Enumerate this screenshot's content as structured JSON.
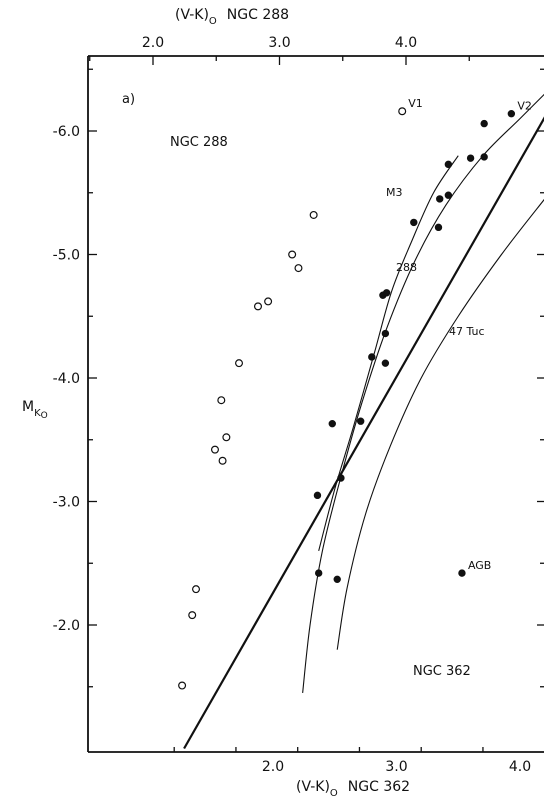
{
  "chart_data": {
    "type": "scatter",
    "panel_label": "a)",
    "top_axis": {
      "label_main": "(V-K)",
      "label_sub": "O",
      "label_tail": "NGC 288",
      "ticks": [
        2.0,
        3.0,
        4.0
      ],
      "tick_labels": [
        "2.0",
        "3.0",
        "4.0"
      ],
      "range": [
        1.4,
        4.6
      ]
    },
    "bottom_axis": {
      "label_main": "(V-K)",
      "label_sub": "O",
      "label_tail": "NGC 362",
      "ticks": [
        2.0,
        3.0,
        4.0
      ],
      "tick_labels": [
        "2.0",
        "3.0",
        "4.0"
      ],
      "range": [
        1.1,
        4.2
      ]
    },
    "y_axis": {
      "label_main": "M",
      "label_sub1": "K",
      "label_sub2": "O",
      "ticks": [
        -2.0,
        -3.0,
        -4.0,
        -5.0,
        -6.0
      ],
      "tick_labels": [
        "-2.0",
        "-3.0",
        "-4.0",
        "-5.0",
        "-6.0"
      ],
      "range": [
        -1.0,
        -6.6
      ]
    },
    "panel_labels": {
      "ngc288": "NGC 288",
      "ngc362": "NGC 362"
    },
    "series": [
      {
        "name": "NGC 288",
        "axis": "top",
        "marker": "open-circle",
        "points": [
          {
            "x": 2.23,
            "y": -1.51,
            "label": ""
          },
          {
            "x": 2.31,
            "y": -2.08,
            "label": ""
          },
          {
            "x": 2.34,
            "y": -2.29,
            "label": ""
          },
          {
            "x": 2.49,
            "y": -3.42,
            "label": ""
          },
          {
            "x": 2.55,
            "y": -3.33,
            "label": ""
          },
          {
            "x": 2.58,
            "y": -3.52,
            "label": ""
          },
          {
            "x": 2.54,
            "y": -3.82,
            "label": ""
          },
          {
            "x": 2.68,
            "y": -4.12,
            "label": ""
          },
          {
            "x": 2.83,
            "y": -4.58,
            "label": ""
          },
          {
            "x": 2.91,
            "y": -4.62,
            "label": ""
          },
          {
            "x": 3.1,
            "y": -5.0,
            "label": ""
          },
          {
            "x": 3.15,
            "y": -4.89,
            "label": ""
          },
          {
            "x": 3.27,
            "y": -5.32,
            "label": ""
          },
          {
            "x": 3.97,
            "y": -6.16,
            "label": "V1"
          }
        ]
      },
      {
        "name": "NGC 362",
        "axis": "bottom",
        "marker": "filled-circle",
        "points": [
          {
            "x": 2.37,
            "y": -2.42,
            "label": ""
          },
          {
            "x": 2.52,
            "y": -2.37,
            "label": ""
          },
          {
            "x": 2.36,
            "y": -3.05,
            "label": ""
          },
          {
            "x": 2.55,
            "y": -3.19,
            "label": ""
          },
          {
            "x": 2.48,
            "y": -3.63,
            "label": ""
          },
          {
            "x": 2.71,
            "y": -3.65,
            "label": ""
          },
          {
            "x": 2.8,
            "y": -4.17,
            "label": ""
          },
          {
            "x": 2.91,
            "y": -4.12,
            "label": ""
          },
          {
            "x": 2.91,
            "y": -4.36,
            "label": ""
          },
          {
            "x": 2.89,
            "y": -4.67,
            "label": ""
          },
          {
            "x": 2.92,
            "y": -4.69,
            "label": ""
          },
          {
            "x": 3.14,
            "y": -5.26,
            "label": ""
          },
          {
            "x": 3.34,
            "y": -5.22,
            "label": ""
          },
          {
            "x": 3.35,
            "y": -5.45,
            "label": ""
          },
          {
            "x": 3.42,
            "y": -5.48,
            "label": ""
          },
          {
            "x": 3.42,
            "y": -5.73,
            "label": ""
          },
          {
            "x": 3.6,
            "y": -5.78,
            "label": ""
          },
          {
            "x": 3.71,
            "y": -5.79,
            "label": ""
          },
          {
            "x": 3.71,
            "y": -6.06,
            "label": ""
          },
          {
            "x": 3.93,
            "y": -6.14,
            "label": "V2"
          },
          {
            "x": 3.53,
            "y": -2.42,
            "label": "AGB"
          }
        ]
      }
    ],
    "lines": [
      {
        "name": "limit",
        "axis": "bottom",
        "points": [
          [
            1.28,
            -1.0
          ],
          [
            4.48,
            -6.6
          ]
        ]
      },
      {
        "name": "M3",
        "axis": "bottom",
        "label": "M3",
        "points": [
          [
            2.37,
            -2.6
          ],
          [
            2.5,
            -3.1
          ],
          [
            2.65,
            -3.6
          ],
          [
            2.82,
            -4.2
          ],
          [
            2.96,
            -4.7
          ],
          [
            3.12,
            -5.1
          ],
          [
            3.3,
            -5.5
          ],
          [
            3.5,
            -5.8
          ]
        ]
      },
      {
        "name": "288",
        "axis": "bottom",
        "label": "288",
        "points": [
          [
            2.24,
            -1.45
          ],
          [
            2.3,
            -2.0
          ],
          [
            2.4,
            -2.6
          ],
          [
            2.55,
            -3.2
          ],
          [
            2.72,
            -3.8
          ],
          [
            2.92,
            -4.4
          ],
          [
            3.15,
            -4.95
          ],
          [
            3.4,
            -5.4
          ],
          [
            3.7,
            -5.8
          ],
          [
            4.0,
            -6.1
          ],
          [
            4.2,
            -6.3
          ]
        ]
      },
      {
        "name": "47 Tuc",
        "axis": "bottom",
        "label": "47 Tuc",
        "points": [
          [
            2.52,
            -1.8
          ],
          [
            2.6,
            -2.3
          ],
          [
            2.75,
            -2.9
          ],
          [
            2.95,
            -3.45
          ],
          [
            3.2,
            -4.0
          ],
          [
            3.5,
            -4.5
          ],
          [
            3.85,
            -5.0
          ],
          [
            4.2,
            -5.45
          ]
        ]
      }
    ]
  }
}
